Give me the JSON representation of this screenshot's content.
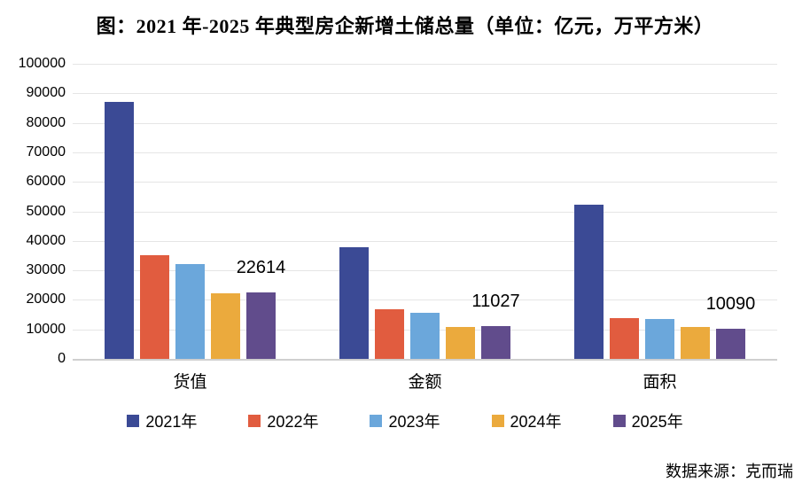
{
  "title": "图：2021 年-2025 年典型房企新增土储总量（单位：亿元，万平方米）",
  "source": "数据来源：克而瑞",
  "chart_data": {
    "type": "bar",
    "categories": [
      "货值",
      "金额",
      "面积"
    ],
    "series": [
      {
        "name": "2021年",
        "color": "#3B4A95",
        "values": [
          87200,
          37900,
          52300
        ]
      },
      {
        "name": "2022年",
        "color": "#E15C3F",
        "values": [
          35100,
          16800,
          13800
        ]
      },
      {
        "name": "2023年",
        "color": "#6BA7DB",
        "values": [
          32000,
          15600,
          13500
        ]
      },
      {
        "name": "2024年",
        "color": "#EBAA3D",
        "values": [
          22200,
          10900,
          10800
        ]
      },
      {
        "name": "2025年",
        "color": "#614C8C",
        "values": [
          22614,
          11027,
          10090
        ]
      }
    ],
    "labeled_series": "2025年",
    "data_labels": [
      "22614",
      "11027",
      "10090"
    ],
    "yticks": [
      "0",
      "10000",
      "20000",
      "30000",
      "40000",
      "50000",
      "60000",
      "70000",
      "80000",
      "90000",
      "100000"
    ],
    "ylim": [
      0,
      100000
    ],
    "grid": true,
    "legend_position": "bottom"
  },
  "colors": {
    "gridline": "#E5E5E5",
    "axis_line": "#CFCFCF",
    "background": "#FFFFFF",
    "text": "#000000"
  }
}
